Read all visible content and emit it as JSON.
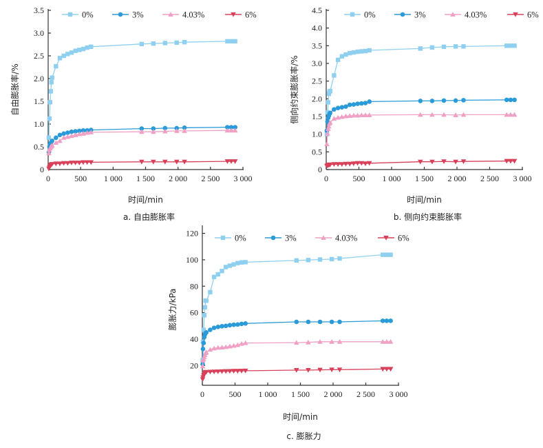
{
  "figure": {
    "legend_labels": [
      "0%",
      "3%",
      "4.03%",
      "6%"
    ],
    "series_colors": [
      "#8fd0f0",
      "#2a9ad8",
      "#f0a0c4",
      "#d8405a"
    ],
    "series_markers": [
      "square",
      "circle",
      "triangle-up",
      "triangle-down"
    ]
  },
  "chart_data": [
    {
      "id": "a",
      "type": "line",
      "caption": "a.  自由膨胀率",
      "title": "",
      "xlabel": "时间/min",
      "ylabel": "自由膨胀率/%",
      "xlim": [
        0,
        3000
      ],
      "ylim": [
        0,
        3.5
      ],
      "xticks": [
        0,
        500,
        1000,
        1500,
        2000,
        2500,
        3000
      ],
      "xtick_labels": [
        "0",
        "500",
        "1 000",
        "1 500",
        "2 000",
        "2 500",
        "3 000"
      ],
      "yticks": [
        0,
        0.5,
        1.0,
        1.5,
        2.0,
        2.5,
        3.0,
        3.5
      ],
      "ytick_labels": [
        "0",
        "0.5",
        "1.0",
        "1.5",
        "2.0",
        "2.5",
        "3.0",
        "3.5"
      ],
      "legend_position": "top",
      "x": [
        10,
        20,
        30,
        40,
        50,
        60,
        120,
        180,
        240,
        300,
        360,
        420,
        480,
        540,
        600,
        660,
        1440,
        1620,
        1800,
        1980,
        2100,
        2760,
        2820,
        2880
      ],
      "series": [
        {
          "name": "0%",
          "values": [
            0.7,
            1.12,
            1.48,
            1.72,
            1.92,
            2.02,
            2.27,
            2.45,
            2.5,
            2.54,
            2.57,
            2.61,
            2.63,
            2.65,
            2.68,
            2.7,
            2.76,
            2.77,
            2.78,
            2.79,
            2.8,
            2.82,
            2.82,
            2.82
          ]
        },
        {
          "name": "3%",
          "values": [
            0.38,
            0.5,
            0.55,
            0.58,
            0.61,
            0.63,
            0.7,
            0.76,
            0.79,
            0.81,
            0.83,
            0.84,
            0.85,
            0.86,
            0.86,
            0.87,
            0.9,
            0.9,
            0.91,
            0.91,
            0.92,
            0.93,
            0.93,
            0.93
          ]
        },
        {
          "name": "4.03%",
          "values": [
            0.36,
            0.43,
            0.47,
            0.5,
            0.51,
            0.53,
            0.59,
            0.63,
            0.7,
            0.72,
            0.74,
            0.76,
            0.78,
            0.79,
            0.81,
            0.82,
            0.83,
            0.83,
            0.84,
            0.85,
            0.85,
            0.86,
            0.86,
            0.86
          ]
        },
        {
          "name": "6%",
          "values": [
            0.02,
            0.05,
            0.08,
            0.1,
            0.11,
            0.12,
            0.13,
            0.13,
            0.14,
            0.14,
            0.15,
            0.15,
            0.15,
            0.16,
            0.16,
            0.16,
            0.17,
            0.17,
            0.17,
            0.17,
            0.17,
            0.18,
            0.18,
            0.18
          ]
        }
      ]
    },
    {
      "id": "b",
      "type": "line",
      "caption": "b.  侧向约束膨胀率",
      "title": "",
      "xlabel": "时间/min",
      "ylabel": "侧向约束膨胀率/%",
      "xlim": [
        0,
        3000
      ],
      "ylim": [
        0,
        4.5
      ],
      "xticks": [
        0,
        500,
        1000,
        1500,
        2000,
        2500,
        3000
      ],
      "xtick_labels": [
        "0",
        "500",
        "1 000",
        "1 500",
        "2 000",
        "2 500",
        "3 000"
      ],
      "yticks": [
        0,
        0.5,
        1.0,
        1.5,
        2.0,
        2.5,
        3.0,
        3.5,
        4.0,
        4.5
      ],
      "ytick_labels": [
        "0",
        "0.5",
        "1.0",
        "1.5",
        "2.0",
        "2.5",
        "3.0",
        "3.5",
        "4.0",
        "4.5"
      ],
      "legend_position": "top",
      "x": [
        10,
        20,
        30,
        40,
        50,
        60,
        120,
        180,
        240,
        300,
        360,
        420,
        480,
        540,
        600,
        660,
        1440,
        1620,
        1800,
        1980,
        2100,
        2760,
        2820,
        2880
      ],
      "series": [
        {
          "name": "0%",
          "values": [
            1.0,
            1.62,
            1.9,
            2.14,
            2.2,
            2.22,
            2.66,
            3.1,
            3.2,
            3.25,
            3.29,
            3.31,
            3.33,
            3.34,
            3.35,
            3.37,
            3.42,
            3.45,
            3.47,
            3.48,
            3.48,
            3.5,
            3.5,
            3.5
          ]
        },
        {
          "name": "3%",
          "values": [
            1.1,
            1.35,
            1.46,
            1.52,
            1.57,
            1.6,
            1.7,
            1.74,
            1.76,
            1.78,
            1.83,
            1.84,
            1.86,
            1.87,
            1.88,
            1.92,
            1.94,
            1.94,
            1.95,
            1.95,
            1.96,
            1.97,
            1.97,
            1.97
          ]
        },
        {
          "name": "4.03%",
          "values": [
            0.72,
            1.02,
            1.15,
            1.22,
            1.3,
            1.33,
            1.44,
            1.47,
            1.49,
            1.51,
            1.52,
            1.53,
            1.53,
            1.54,
            1.54,
            1.54,
            1.55,
            1.55,
            1.55,
            1.54,
            1.55,
            1.55,
            1.55,
            1.55
          ]
        },
        {
          "name": "6%",
          "values": [
            0.1,
            0.12,
            0.13,
            0.13,
            0.14,
            0.14,
            0.15,
            0.15,
            0.15,
            0.16,
            0.16,
            0.17,
            0.18,
            0.18,
            0.17,
            0.18,
            0.22,
            0.22,
            0.23,
            0.22,
            0.23,
            0.24,
            0.24,
            0.24
          ]
        }
      ]
    },
    {
      "id": "c",
      "type": "line",
      "caption": "c.  膨胀力",
      "title": "",
      "xlabel": "时间/min",
      "ylabel": "膨胀力/kPa",
      "xlim": [
        0,
        3000
      ],
      "ylim": [
        5,
        125
      ],
      "xticks": [
        0,
        500,
        1000,
        1500,
        2000,
        2500,
        3000
      ],
      "xtick_labels": [
        "0",
        "500",
        "1 000",
        "1 500",
        "2 000",
        "2 500",
        "3 000"
      ],
      "yticks": [
        20,
        40,
        60,
        80,
        100,
        120
      ],
      "ytick_labels": [
        "20",
        "40",
        "60",
        "80",
        "100",
        "120"
      ],
      "legend_position": "top",
      "x": [
        5,
        10,
        20,
        30,
        40,
        50,
        60,
        120,
        180,
        240,
        300,
        360,
        420,
        480,
        540,
        600,
        660,
        1440,
        1620,
        1800,
        1980,
        2100,
        2760,
        2820,
        2880
      ],
      "series": [
        {
          "name": "0%",
          "values": [
            24,
            38,
            47,
            58,
            64,
            69,
            69,
            75.5,
            87,
            89,
            91.5,
            94.5,
            95.5,
            96.5,
            97.5,
            98,
            98.2,
            99.5,
            99.8,
            100.2,
            100.5,
            101,
            103.8,
            103.8,
            103.8
          ]
        },
        {
          "name": "3%",
          "values": [
            21,
            32.5,
            37,
            41.5,
            43.5,
            44.5,
            45,
            47,
            48.5,
            49.2,
            49.7,
            50,
            50.5,
            50.8,
            51,
            51.5,
            51.8,
            53,
            53,
            53,
            53,
            53,
            53.8,
            53.8,
            53.8
          ]
        },
        {
          "name": "4.03%",
          "values": [
            19.5,
            24,
            25,
            26.5,
            28,
            29.5,
            30,
            32,
            33,
            33.5,
            33.7,
            34,
            34.5,
            35,
            35.5,
            36.5,
            37,
            37.3,
            37.5,
            38,
            38,
            38,
            38,
            38,
            38
          ]
        },
        {
          "name": "6%",
          "values": [
            9.5,
            11,
            12.5,
            13.5,
            14.5,
            15,
            15,
            15.2,
            15.3,
            15.4,
            15.5,
            15.6,
            15.7,
            15.8,
            15.8,
            15.9,
            16,
            16.5,
            16.5,
            16.7,
            16.8,
            16.8,
            17.3,
            17.3,
            17.3
          ]
        }
      ]
    }
  ]
}
